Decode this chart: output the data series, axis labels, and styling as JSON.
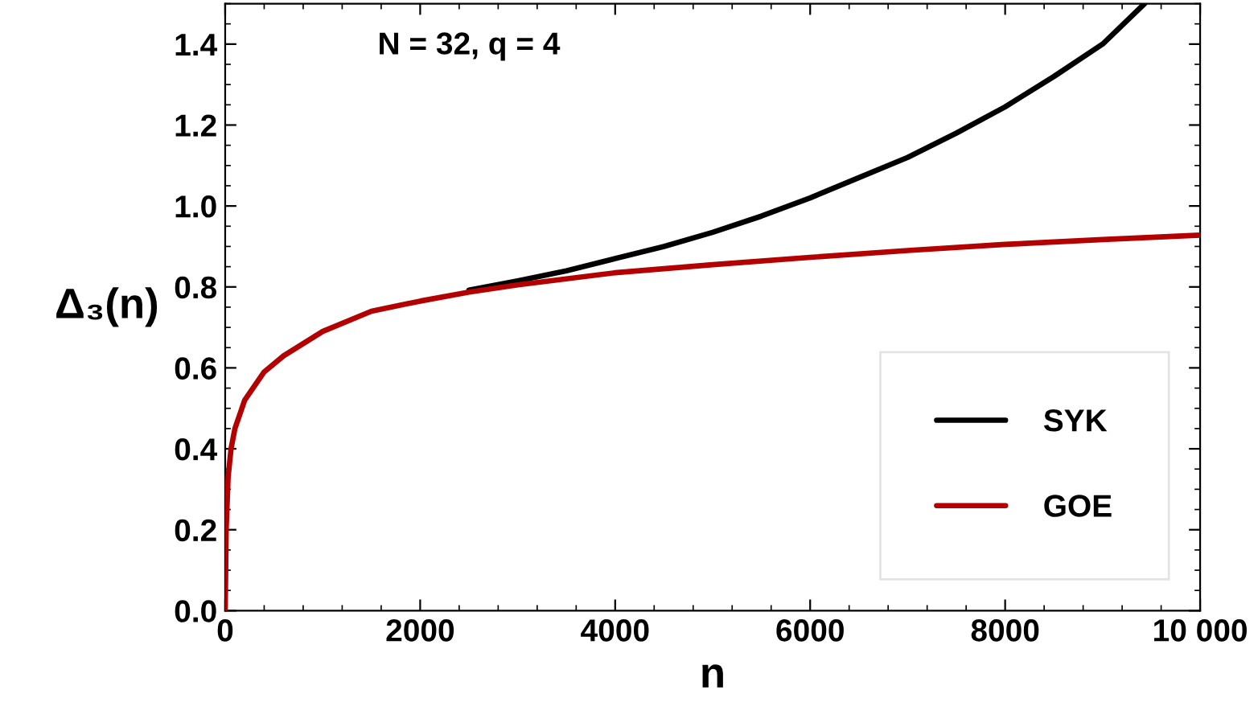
{
  "chart_data": {
    "type": "line",
    "xlabel": "n",
    "ylabel": "Δ₃(n)",
    "annotations": [
      "N = 32, q = 4"
    ],
    "xlim": [
      0,
      10000
    ],
    "ylim": [
      0,
      1.5
    ],
    "xticks": [
      0,
      2000,
      4000,
      6000,
      8000,
      {
        "value": 10000,
        "label": "10 000"
      }
    ],
    "yticks": [
      {
        "value": 0,
        "label": "0.0"
      },
      0.2,
      0.4,
      0.6,
      0.8,
      {
        "value": 1,
        "label": "1.0"
      },
      1.2,
      1.4
    ],
    "grid": false,
    "legend": "bottom right",
    "marker": "none",
    "line_style": "solid",
    "series": [
      {
        "name": "SYK",
        "color": "#000000",
        "x": [
          2500,
          3000,
          3500,
          4000,
          4500,
          5000,
          5500,
          6000,
          6500,
          7000,
          7500,
          8000,
          8500,
          9000,
          9430
        ],
        "values": [
          0.792,
          0.815,
          0.84,
          0.87,
          0.9,
          0.935,
          0.975,
          1.02,
          1.07,
          1.12,
          1.18,
          1.245,
          1.32,
          1.4,
          1.5
        ]
      },
      {
        "name": "GOE",
        "color": "#b30000",
        "x": [
          0,
          10,
          30,
          60,
          100,
          200,
          400,
          600,
          1000,
          1500,
          2000,
          2500,
          3000,
          4000,
          5000,
          6000,
          7000,
          8000,
          9000,
          10000
        ],
        "values": [
          0,
          0.2,
          0.33,
          0.4,
          0.45,
          0.52,
          0.59,
          0.63,
          0.69,
          0.74,
          0.765,
          0.787,
          0.805,
          0.835,
          0.855,
          0.873,
          0.89,
          0.905,
          0.917,
          0.928
        ]
      }
    ]
  }
}
